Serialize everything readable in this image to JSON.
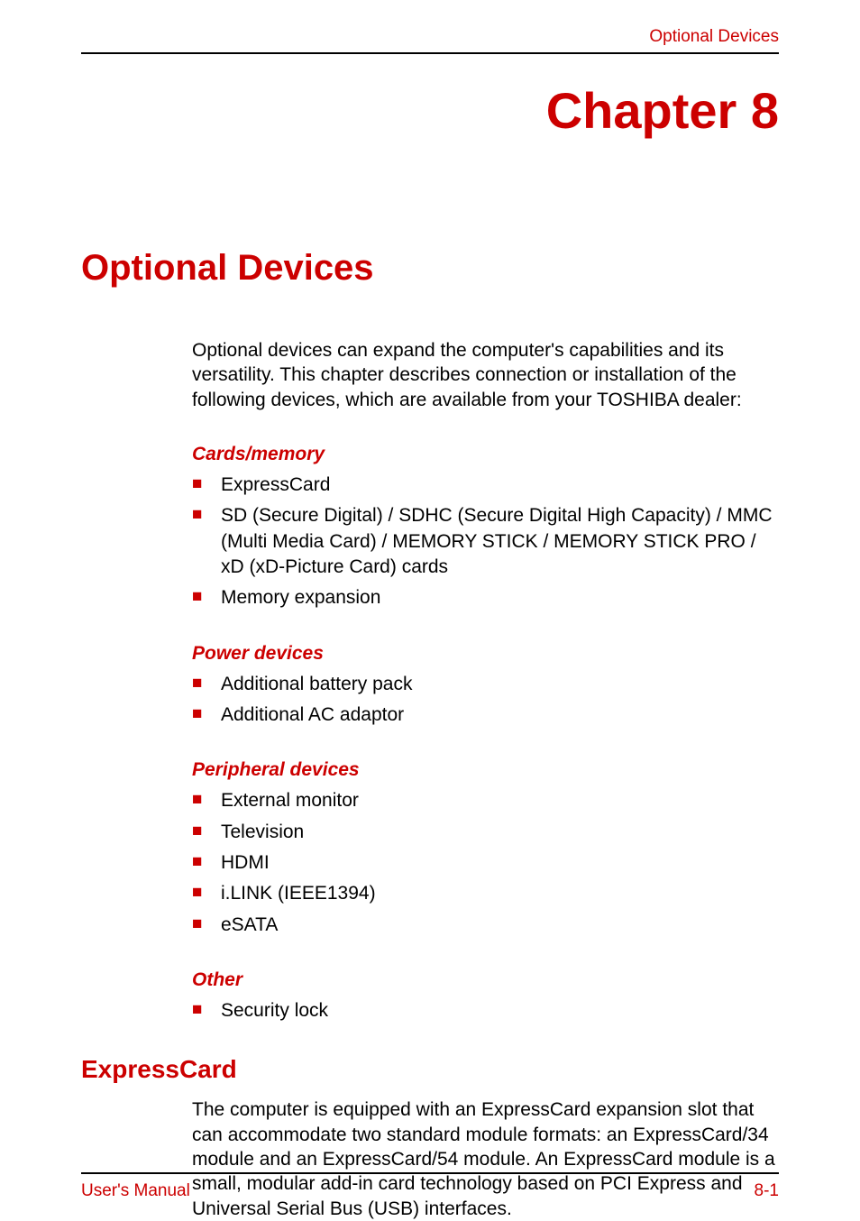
{
  "header": {
    "running_title": "Optional Devices"
  },
  "chapter": {
    "label": "Chapter 8"
  },
  "main_heading": "Optional Devices",
  "intro": "Optional devices can expand the computer's capabilities and its versatility. This chapter describes connection or installation of the following devices, which are available from your TOSHIBA dealer:",
  "sections": {
    "cards_memory": {
      "heading": "Cards/memory",
      "items": [
        "ExpressCard",
        "SD (Secure Digital) / SDHC (Secure Digital High Capacity) / MMC (Multi Media Card) / MEMORY STICK / MEMORY STICK PRO / xD (xD-Picture Card) cards",
        "Memory expansion"
      ]
    },
    "power_devices": {
      "heading": "Power devices",
      "items": [
        "Additional battery pack",
        "Additional AC adaptor"
      ]
    },
    "peripheral_devices": {
      "heading": "Peripheral devices",
      "items": [
        "External monitor",
        "Television",
        "HDMI",
        "i.LINK (IEEE1394)",
        "eSATA"
      ]
    },
    "other": {
      "heading": "Other",
      "items": [
        "Security lock"
      ]
    }
  },
  "expresscard": {
    "heading": "ExpressCard",
    "paragraph": "The computer is equipped with an ExpressCard expansion slot that can accommodate two standard module formats: an ExpressCard/34 module and an ExpressCard/54 module. An ExpressCard module is a small, modular add-in card technology based on PCI Express and Universal Serial Bus (USB) interfaces."
  },
  "footer": {
    "left": "User's Manual",
    "right": "8-1"
  },
  "colors": {
    "accent_red": "#cc0000",
    "text_black": "#000000",
    "background": "#ffffff"
  }
}
